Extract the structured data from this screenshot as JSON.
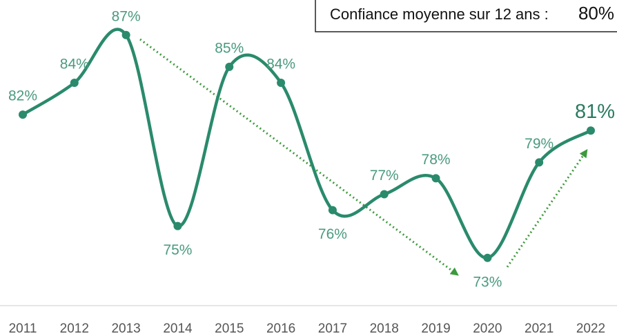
{
  "chart_data": {
    "type": "line",
    "categories": [
      "2011",
      "2012",
      "2013",
      "2014",
      "2015",
      "2016",
      "2017",
      "2018",
      "2019",
      "2020",
      "2021",
      "2022"
    ],
    "values": [
      82,
      84,
      87,
      75,
      85,
      84,
      76,
      77,
      78,
      73,
      79,
      81
    ],
    "value_labels": [
      "82%",
      "84%",
      "87%",
      "75%",
      "85%",
      "84%",
      "76%",
      "77%",
      "78%",
      "73%",
      "79%",
      "81%"
    ],
    "color": "#2a8a6c",
    "ylim": [
      70,
      89.2
    ],
    "annotation": {
      "text": "Confiance moyenne sur 12 ans :",
      "value_label": "80%"
    }
  }
}
